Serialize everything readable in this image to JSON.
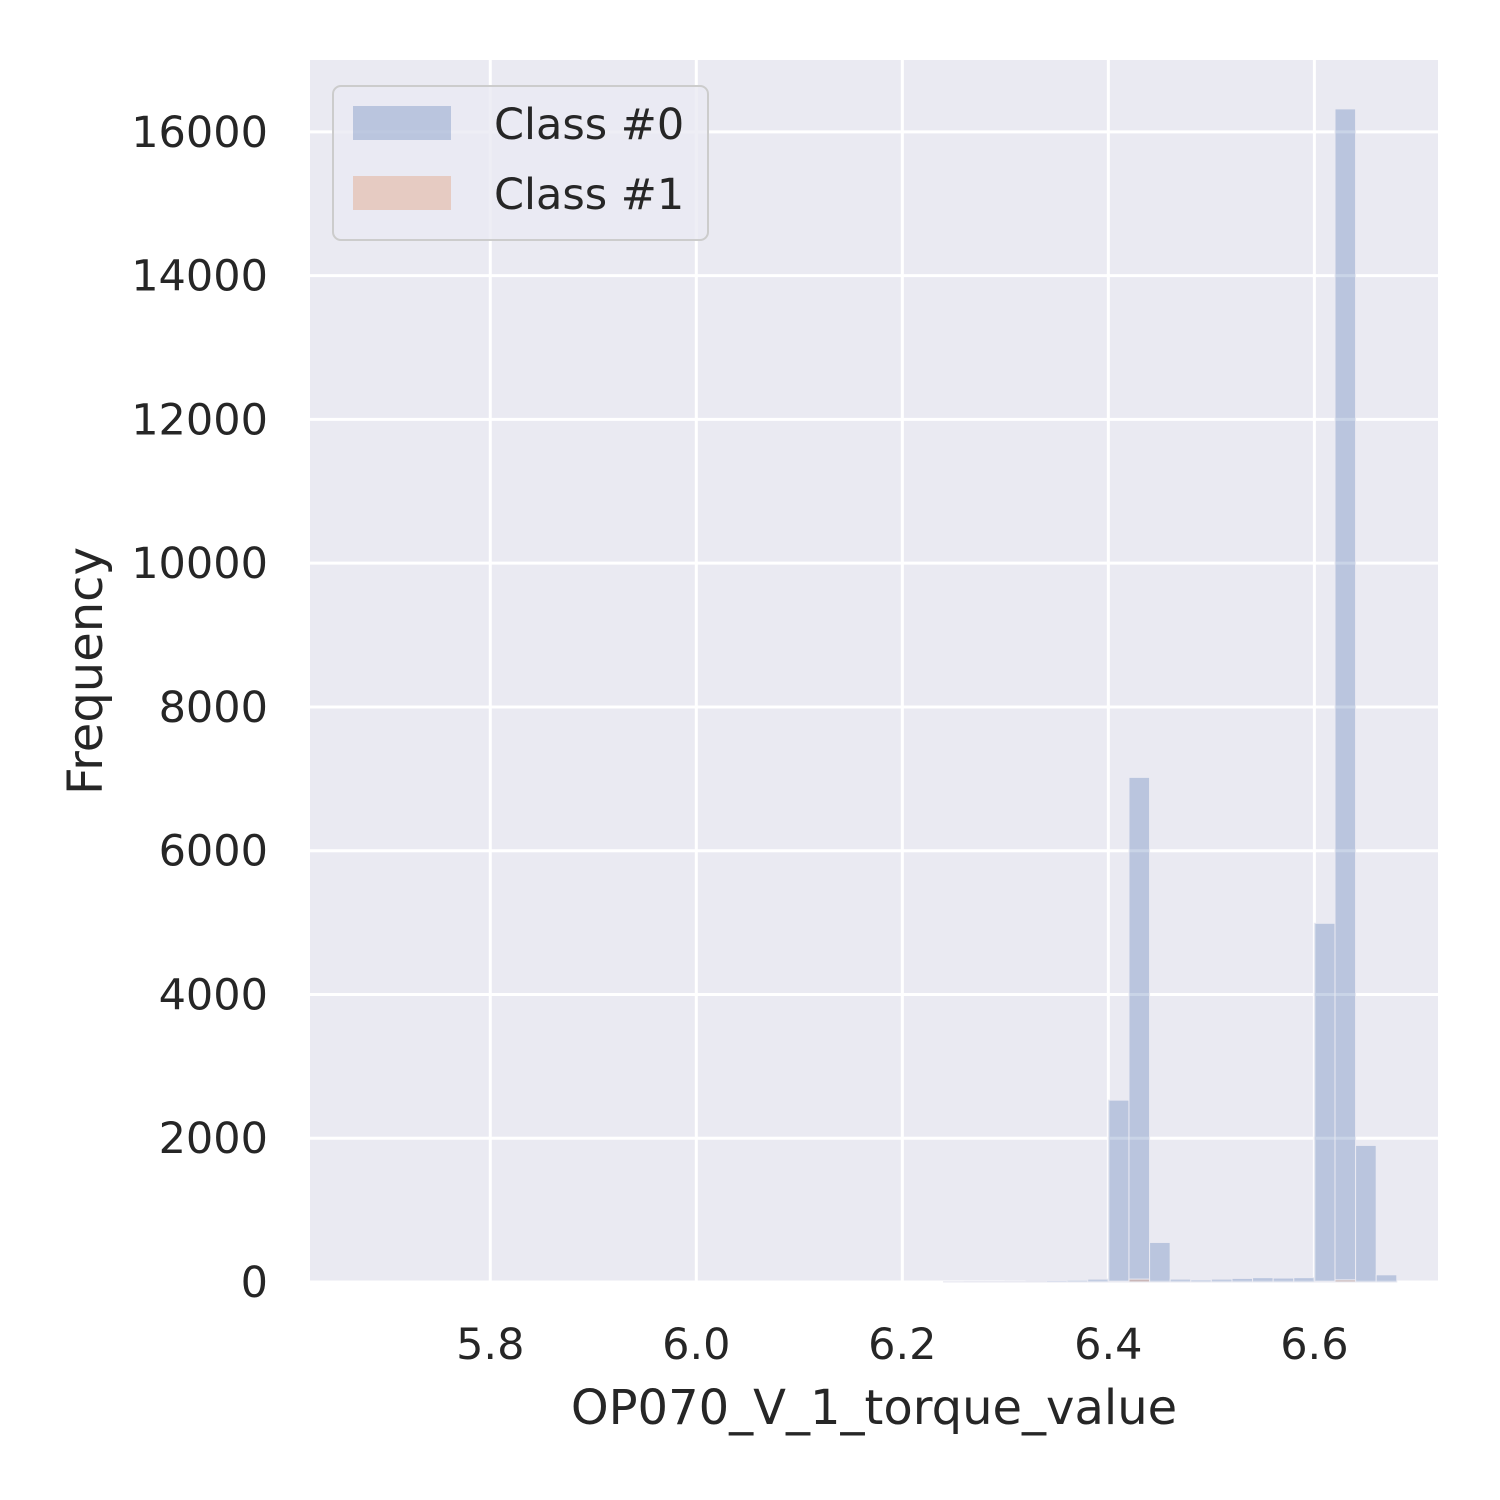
{
  "chart_data": {
    "type": "bar",
    "xlabel": "OP070_V_1_torque_value",
    "ylabel": "Frequency",
    "xlim": [
      5.625,
      6.72
    ],
    "ylim": [
      0,
      17000
    ],
    "xticks": [
      5.8,
      6.0,
      6.2,
      6.4,
      6.6
    ],
    "xtick_labels": [
      "5.8",
      "6.0",
      "6.2",
      "6.4",
      "6.6"
    ],
    "yticks": [
      0,
      2000,
      4000,
      6000,
      8000,
      10000,
      12000,
      14000,
      16000
    ],
    "ytick_labels": [
      "0",
      "2000",
      "4000",
      "6000",
      "8000",
      "10000",
      "12000",
      "14000",
      "16000"
    ],
    "grid": true,
    "legend_position": "top-left",
    "series": [
      {
        "name": "Class #0",
        "color": "#4c72b0",
        "bin_width": 0.02,
        "bin_starts": [
          6.24,
          6.26,
          6.28,
          6.3,
          6.32,
          6.34,
          6.36,
          6.38,
          6.4,
          6.42,
          6.44,
          6.46,
          6.48,
          6.5,
          6.52,
          6.54,
          6.56,
          6.58,
          6.6,
          6.62,
          6.64,
          6.66
        ],
        "values": [
          5,
          8,
          8,
          10,
          15,
          20,
          25,
          40,
          2530,
          7020,
          550,
          40,
          30,
          40,
          50,
          60,
          55,
          60,
          4990,
          16320,
          1900,
          100
        ]
      },
      {
        "name": "Class #1",
        "color": "#dd8452",
        "bin_width": 0.02,
        "bin_starts": [
          6.4,
          6.42,
          6.6,
          6.62
        ],
        "values": [
          10,
          40,
          10,
          30
        ]
      }
    ]
  }
}
